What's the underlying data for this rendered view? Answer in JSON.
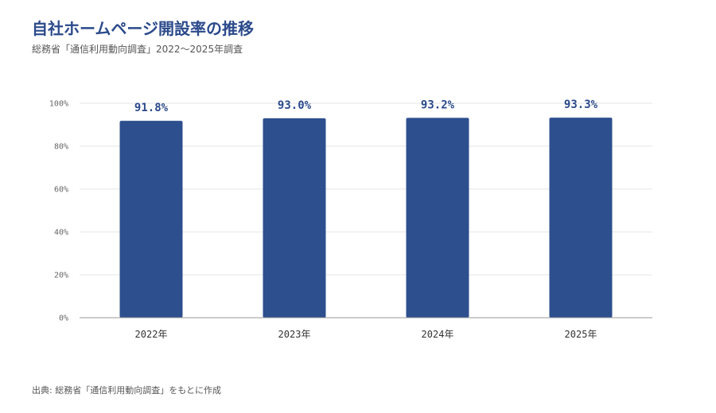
{
  "header": {
    "title": "自社ホームページ開設率の推移",
    "subtitle": "総務省「通信利用動向調査」2022〜2025年調査"
  },
  "footer": {
    "source": "出典: 総務省「通信利用動向調査」をもとに作成"
  },
  "colors": {
    "bar": "#2d4f8e",
    "title": "#2b4a8b",
    "grid": "#e6e6e6",
    "axis": "#999999"
  },
  "chart_data": {
    "type": "bar",
    "categories": [
      "2022年",
      "2023年",
      "2024年",
      "2025年"
    ],
    "values": [
      91.8,
      93.0,
      93.2,
      93.3
    ],
    "value_labels": [
      "91.8%",
      "93.0%",
      "93.2%",
      "93.3%"
    ],
    "y_ticks": [
      "0%",
      "20%",
      "40%",
      "60%",
      "80%",
      "100%"
    ],
    "y_tick_values": [
      0,
      20,
      40,
      60,
      80,
      100
    ],
    "ylim": [
      0,
      100
    ],
    "grid": true,
    "legend": "none"
  }
}
